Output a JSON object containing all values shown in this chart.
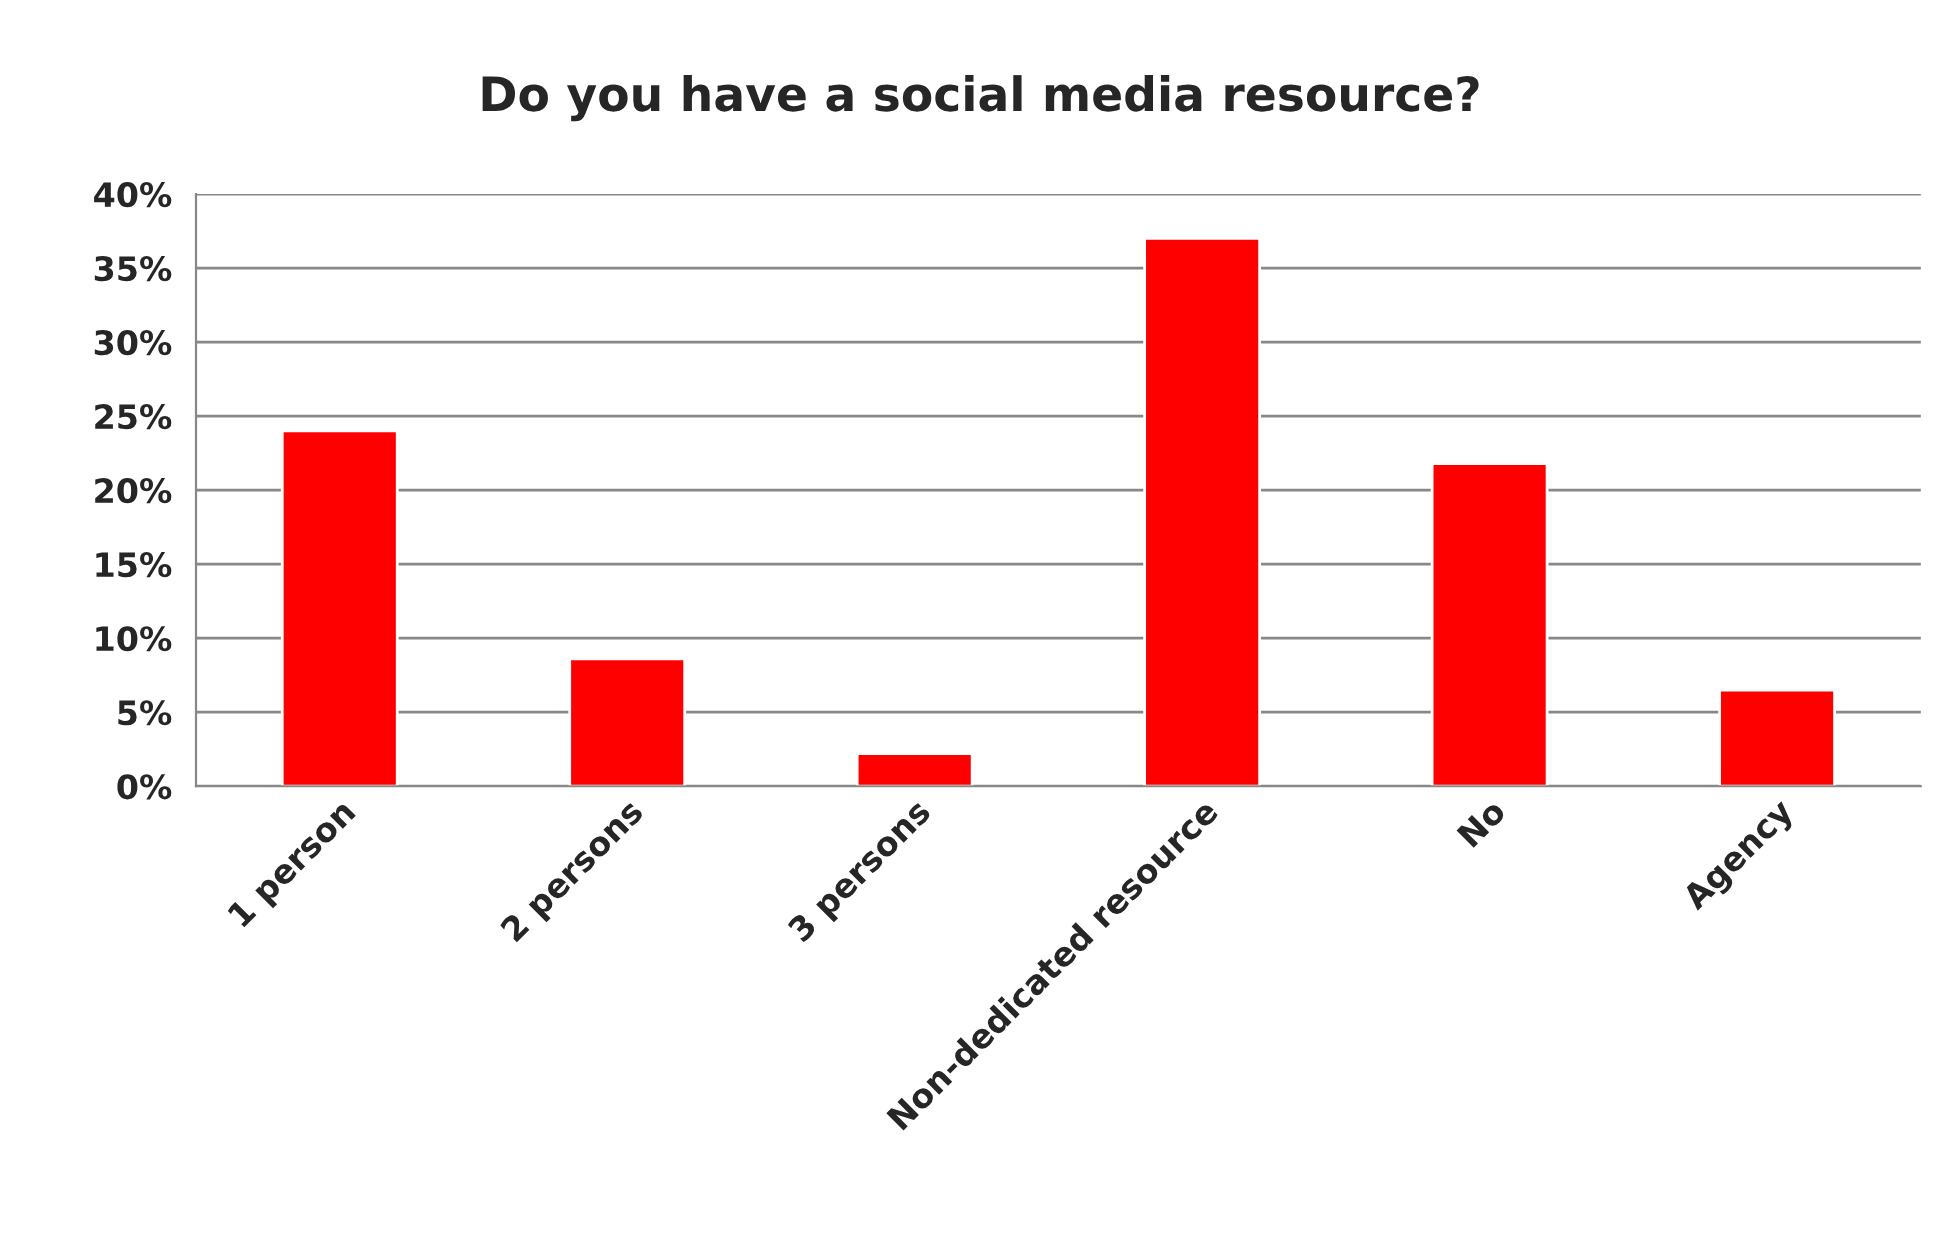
{
  "chart_data": {
    "type": "bar",
    "title": "Do you have a social media resource?",
    "categories": [
      "1 person",
      "2 persons",
      "3 persons",
      "Non-dedicated resource",
      "No",
      "Agency"
    ],
    "values": [
      24,
      8.6,
      2.2,
      37,
      21.8,
      6.5
    ],
    "color": "#ff0000",
    "ylim": [
      0,
      40
    ],
    "yticks": [
      {
        "value": 0,
        "label": "0%"
      },
      {
        "value": 5,
        "label": "5%"
      },
      {
        "value": 10,
        "label": "10%"
      },
      {
        "value": 15,
        "label": "15%"
      },
      {
        "value": 20,
        "label": "20%"
      },
      {
        "value": 25,
        "label": "25%"
      },
      {
        "value": 30,
        "label": "30%"
      },
      {
        "value": 35,
        "label": "35%"
      },
      {
        "value": 40,
        "label": "40%"
      }
    ],
    "grid": "y",
    "legend": false
  }
}
